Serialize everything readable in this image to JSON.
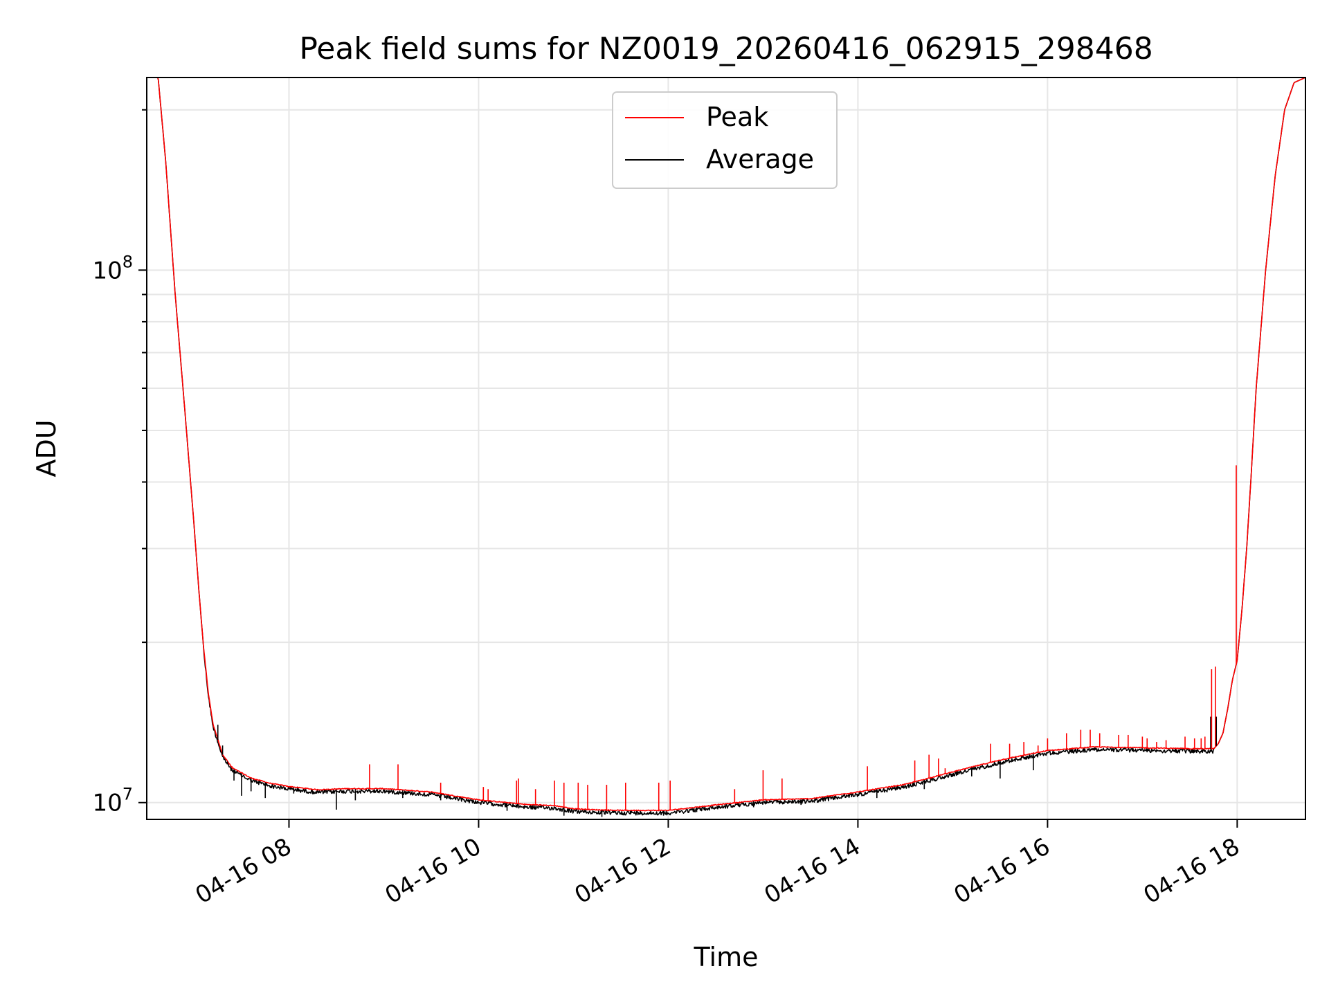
{
  "chart_data": {
    "type": "line",
    "title": "Peak field sums for NZ0019_20260416_062915_298468",
    "xlabel": "Time",
    "ylabel": "ADU",
    "x_unit": "hours",
    "xlim": [
      6.5,
      18.72
    ],
    "ylim": [
      9300000,
      230000000
    ],
    "yscale": "log",
    "x_ticks": [
      {
        "value": 8,
        "label": "04-16 08"
      },
      {
        "value": 10,
        "label": "04-16 10"
      },
      {
        "value": 12,
        "label": "04-16 12"
      },
      {
        "value": 14,
        "label": "04-16 14"
      },
      {
        "value": 16,
        "label": "04-16 16"
      },
      {
        "value": 18,
        "label": "04-16 18"
      }
    ],
    "y_ticks": [
      {
        "value": 10000000,
        "base": "10",
        "exp": "7"
      },
      {
        "value": 100000000,
        "base": "10",
        "exp": "8"
      }
    ],
    "grid": true,
    "legend": {
      "position": "top-center",
      "entries": [
        "Peak",
        "Average"
      ]
    },
    "series": [
      {
        "name": "Peak",
        "color": "#ff0000"
      },
      {
        "name": "Average",
        "color": "#000000"
      }
    ],
    "baseline": {
      "x": [
        6.5,
        6.62,
        6.7,
        6.8,
        6.9,
        7.0,
        7.05,
        7.1,
        7.15,
        7.2,
        7.3,
        7.4,
        7.6,
        7.8,
        8.0,
        8.3,
        8.6,
        9.0,
        9.5,
        10.0,
        10.5,
        10.8,
        11.0,
        11.2,
        11.5,
        12.0,
        12.5,
        13.0,
        13.5,
        14.0,
        14.5,
        15.0,
        15.5,
        16.0,
        16.5,
        17.0,
        17.5,
        17.75,
        17.8,
        17.85,
        17.9,
        17.95,
        18.0,
        18.05,
        18.1,
        18.15,
        18.2,
        18.3,
        18.4,
        18.5,
        18.6,
        18.72
      ],
      "y": [
        230000000,
        230000000,
        160000000,
        90000000,
        55000000,
        33000000,
        25000000,
        19500000,
        16000000,
        14000000,
        12300000,
        11600000,
        11100000,
        10850000,
        10700000,
        10550000,
        10600000,
        10600000,
        10450000,
        10100000,
        9900000,
        9850000,
        9720000,
        9680000,
        9650000,
        9650000,
        9880000,
        10100000,
        10150000,
        10450000,
        10800000,
        11400000,
        12000000,
        12500000,
        12700000,
        12650000,
        12600000,
        12600000,
        12900000,
        13500000,
        15000000,
        17000000,
        18500000,
        23000000,
        30000000,
        42000000,
        60000000,
        100000000,
        150000000,
        200000000,
        225000000,
        230000000
      ]
    },
    "average_events": {
      "x": [
        7.25,
        7.3,
        7.35,
        7.42,
        7.5,
        7.6,
        7.75,
        8.05,
        8.5,
        8.7,
        9.2,
        9.6,
        10.3,
        10.9,
        11.3,
        11.6,
        11.95,
        12.3,
        12.9,
        13.4,
        14.2,
        14.7,
        15.2,
        15.5,
        15.85,
        17.72,
        17.78
      ],
      "y": [
        14000000,
        12800000,
        11800000,
        11000000,
        10300000,
        10500000,
        10200000,
        10400000,
        9700000,
        10100000,
        10200000,
        10100000,
        9650000,
        9450000,
        9400000,
        9500000,
        9450000,
        9600000,
        9800000,
        9900000,
        10200000,
        10600000,
        11200000,
        11100000,
        11500000,
        14500000,
        14500000
      ]
    },
    "peak_events": {
      "x": [
        7.4,
        8.85,
        9.15,
        9.6,
        10.05,
        10.1,
        10.4,
        10.42,
        10.6,
        10.8,
        10.9,
        11.05,
        11.15,
        11.35,
        11.55,
        11.9,
        12.02,
        12.7,
        13.0,
        13.2,
        14.1,
        14.6,
        14.75,
        14.85,
        14.92,
        15.4,
        15.6,
        15.75,
        15.9,
        16.0,
        16.2,
        16.35,
        16.45,
        16.55,
        16.75,
        16.85,
        17.0,
        17.05,
        17.15,
        17.25,
        17.45,
        17.55,
        17.62,
        17.66,
        17.73,
        17.77,
        17.99
      ],
      "y": [
        11700000,
        11800000,
        11800000,
        10900000,
        10700000,
        10600000,
        11000000,
        11100000,
        10600000,
        11000000,
        10900000,
        10900000,
        10800000,
        10800000,
        10900000,
        10900000,
        11000000,
        10600000,
        11500000,
        11100000,
        11700000,
        12000000,
        12300000,
        12100000,
        11600000,
        12900000,
        12900000,
        13000000,
        12800000,
        13200000,
        13500000,
        13700000,
        13700000,
        13500000,
        13400000,
        13400000,
        13300000,
        13200000,
        13000000,
        13100000,
        13300000,
        13200000,
        13200000,
        13300000,
        17800000,
        18000000,
        43000000
      ]
    }
  }
}
